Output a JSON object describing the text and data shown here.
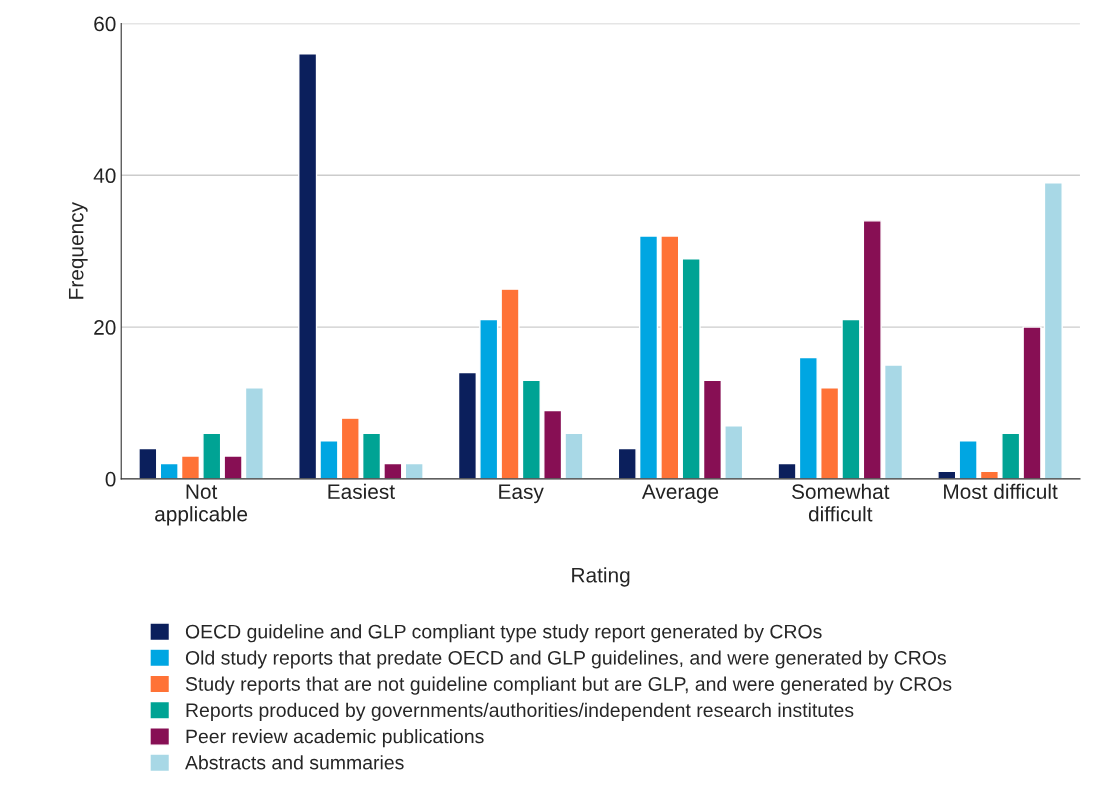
{
  "chart_data": {
    "type": "bar",
    "xlabel": "Rating",
    "ylabel": "Frequency",
    "categories": [
      "Not\napplicable",
      "Easiest",
      "Easy",
      "Average",
      "Somewhat\ndifficult",
      "Most difficult"
    ],
    "ylim": [
      0,
      60
    ],
    "yticks": [
      0,
      20,
      40,
      60
    ],
    "grid": "y",
    "legend": "bottom",
    "series": [
      {
        "name": "OECD guideline and GLP compliant type study report generated by CROs",
        "color": "#0b1f5c",
        "values": [
          4,
          56,
          14,
          4,
          2,
          1
        ]
      },
      {
        "name": "Old study reports that predate OECD and GLP guidelines, and were generated by CROs",
        "color": "#00a6e2",
        "values": [
          2,
          5,
          21,
          32,
          16,
          5
        ]
      },
      {
        "name": "Study reports that are not guideline compliant but are GLP, and were generated by CROs",
        "color": "#ff7236",
        "values": [
          3,
          8,
          25,
          32,
          12,
          1
        ]
      },
      {
        "name": "Reports produced by governments/authorities/independent research institutes",
        "color": "#00a394",
        "values": [
          6,
          6,
          13,
          29,
          21,
          6
        ]
      },
      {
        "name": "Peer review academic publications",
        "color": "#870f54",
        "values": [
          3,
          2,
          9,
          13,
          34,
          20
        ]
      },
      {
        "name": "Abstracts and summaries",
        "color": "#a8d8e6",
        "values": [
          12,
          2,
          6,
          7,
          15,
          39
        ]
      }
    ]
  }
}
